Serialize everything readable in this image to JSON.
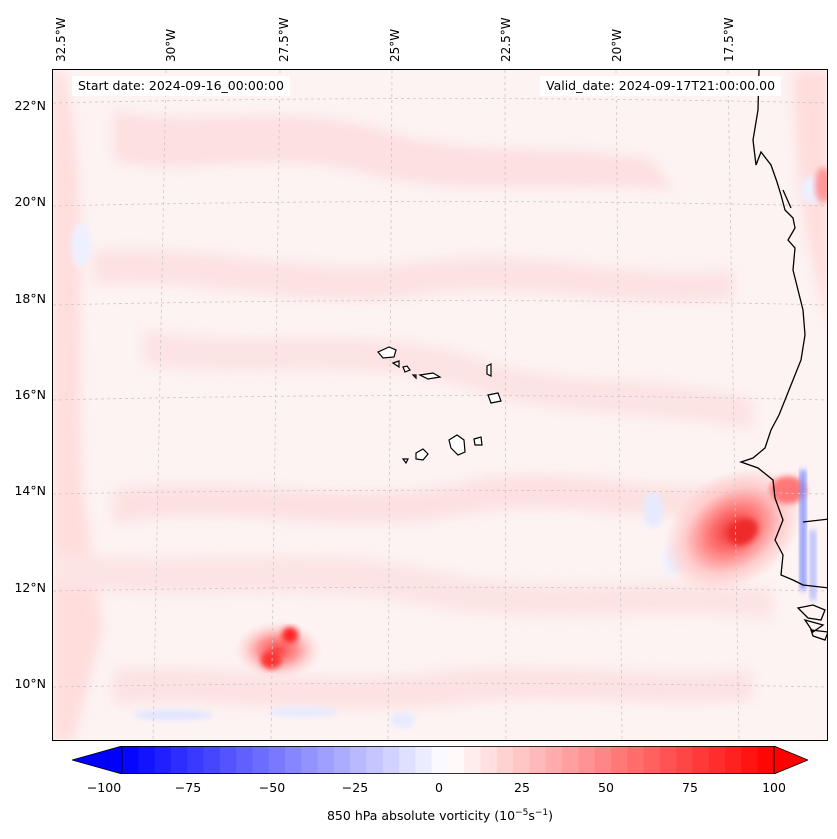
{
  "map": {
    "start_date": "Start date: 2024-09-16_00:00:00",
    "valid_date": "Valid_date: 2024-09-17T21:00:00.00",
    "lon_labels": [
      "32.5°W",
      "30°W",
      "27.5°W",
      "25°W",
      "22.5°W",
      "20°W",
      "17.5°W"
    ],
    "lat_labels": [
      "22°N",
      "20°N",
      "18°N",
      "16°N",
      "14°N",
      "12°N",
      "10°N"
    ],
    "variable": "850 hPa absolute vorticity",
    "units_base": "(10",
    "units_exp1": "−5",
    "units_mid": "s",
    "units_exp2": "−1",
    "units_close": ")"
  },
  "colorbar": {
    "ticks": [
      "−100",
      "−75",
      "−50",
      "−25",
      "0",
      "25",
      "50",
      "75",
      "100"
    ],
    "min": -100,
    "max": 100,
    "negative_color": "#0000ff",
    "positive_color": "#ff0000"
  },
  "colors": {
    "coastline": "#000000",
    "gridline": "#c8c8c8"
  }
}
